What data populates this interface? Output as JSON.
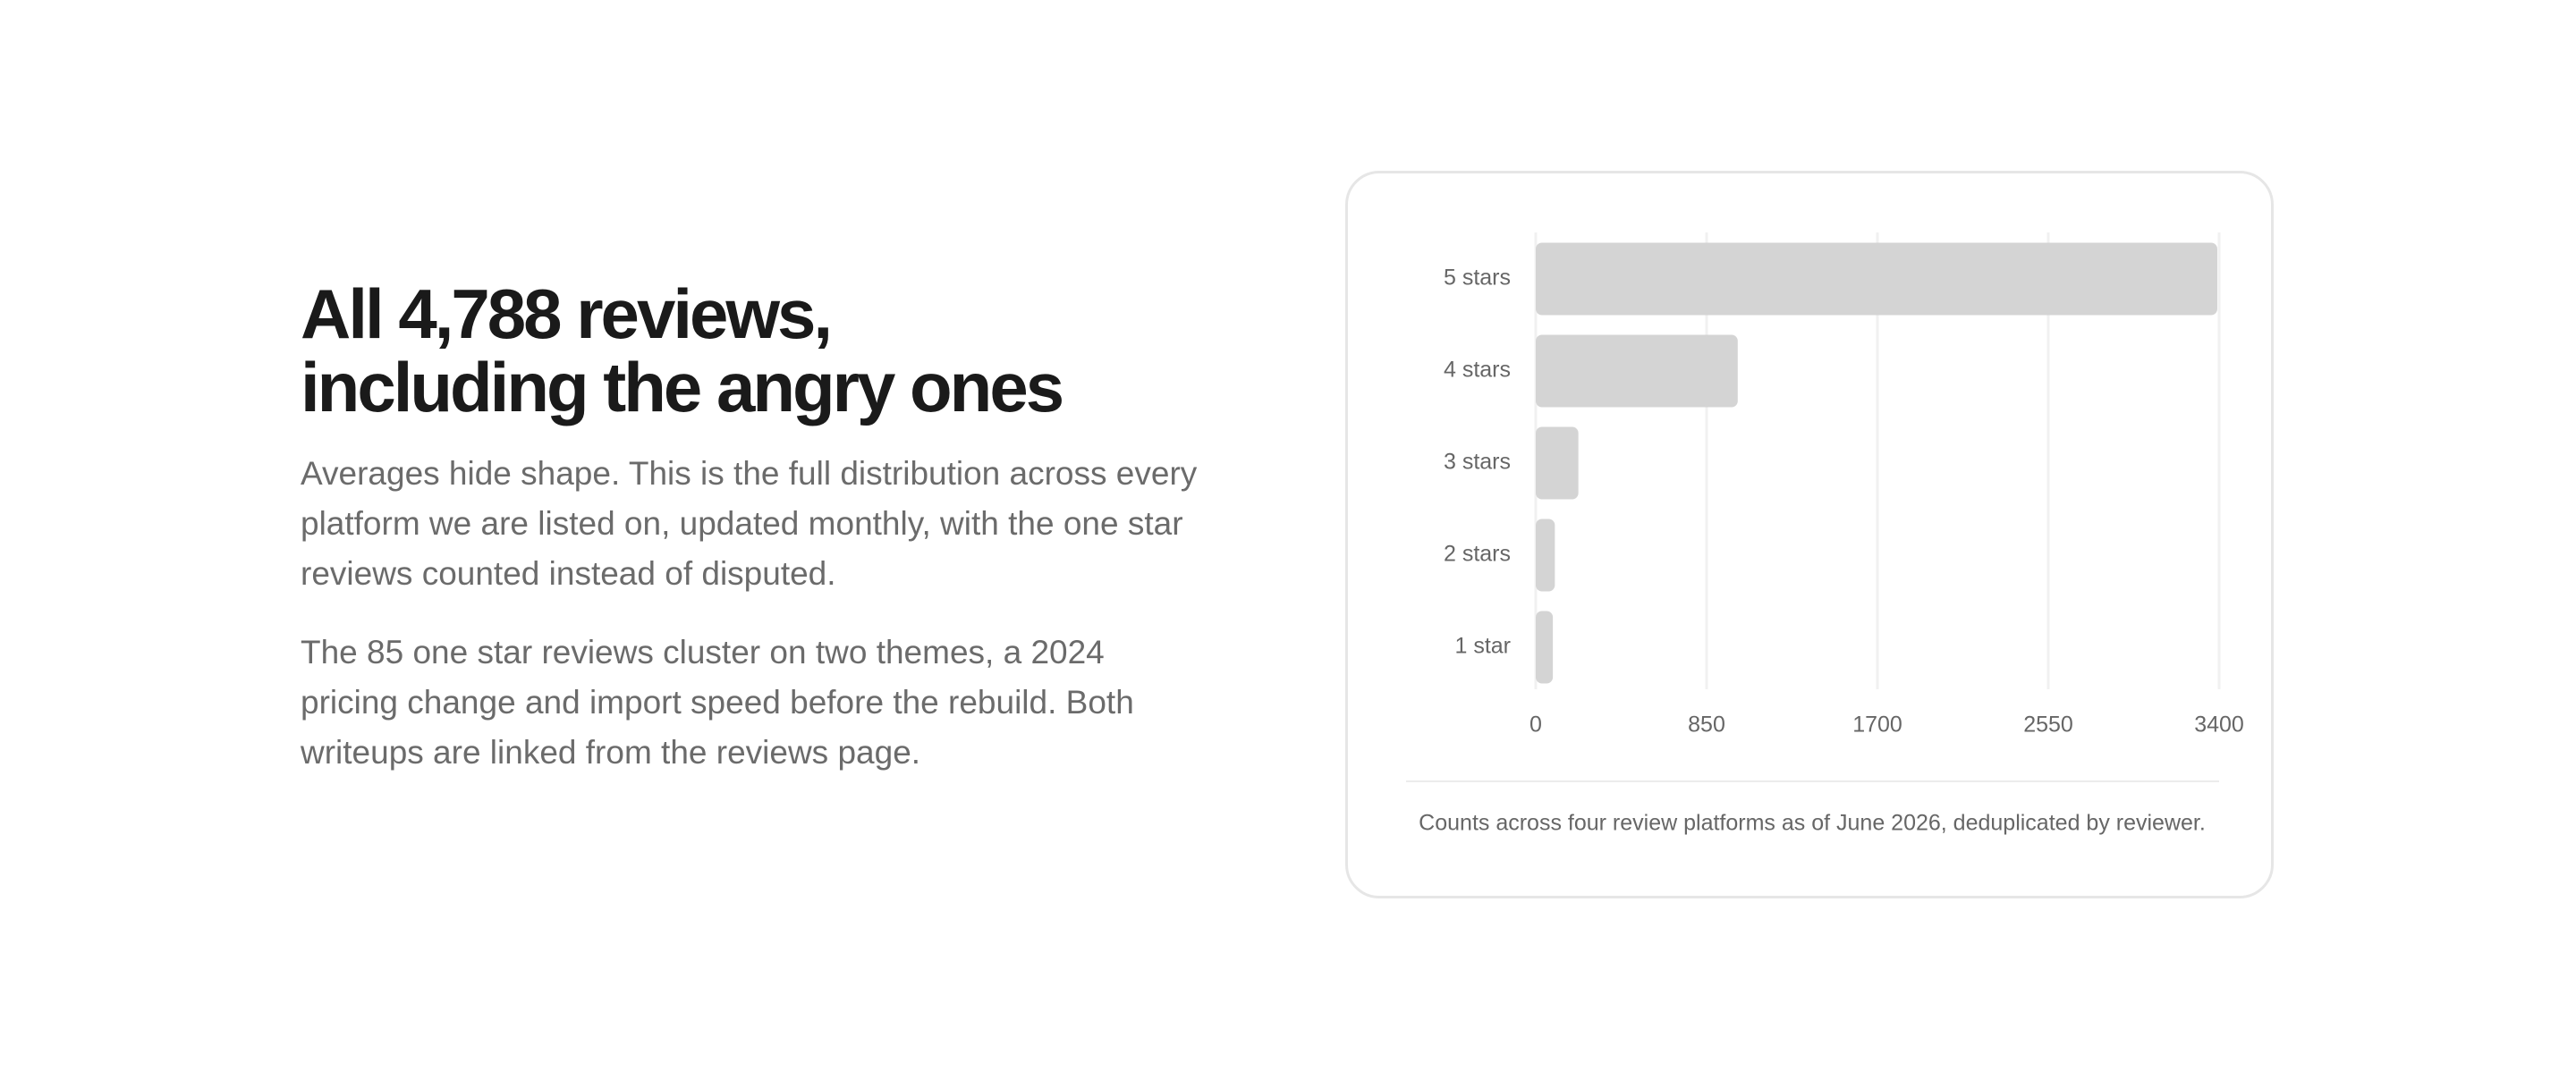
{
  "heading": {
    "lines": [
      "All 4,788 reviews,",
      "including the angry ones"
    ]
  },
  "paragraphs": [
    "Averages hide shape. This is the full distribution across every platform we are listed on, updated monthly, with the one star reviews counted instead of disputed.",
    "The 85 one star reviews cluster on two themes, a 2024 pricing change and import speed before the rebuild. Both writeups are linked from the reviews page."
  ],
  "chart_data": {
    "type": "hbar",
    "categories": [
      "5 stars",
      "4 stars",
      "3 stars",
      "2 stars",
      "1 star"
    ],
    "values": [
      3391,
      1005,
      212,
      95,
      85
    ],
    "color": "#d4d4d4",
    "xlim": [
      0,
      3400
    ],
    "xticks": [
      0,
      850,
      1700,
      2550,
      3400
    ],
    "grid": true,
    "caption": "Counts across four review platforms as of June 2026, deduplicated by reviewer."
  }
}
